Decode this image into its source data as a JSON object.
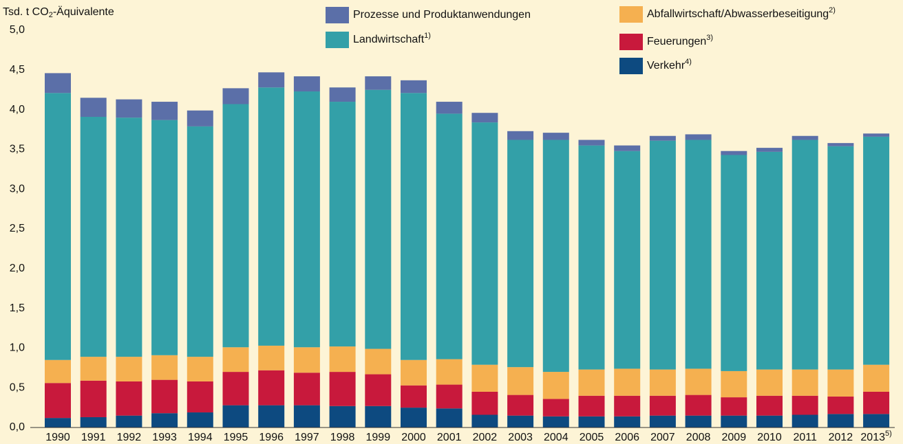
{
  "chart_data": {
    "type": "stacked_bar",
    "y_label": [
      "Tsd. t CO",
      "2",
      "-Äquivalente"
    ],
    "categories": [
      "1990",
      "1991",
      "1992",
      "1993",
      "1994",
      "1995",
      "1996",
      "1997",
      "1998",
      "1999",
      "2000",
      "2001",
      "2002",
      "2003",
      "2004",
      "2005",
      "2006",
      "2007",
      "2008",
      "2009",
      "2010",
      "2011",
      "2012",
      "2013"
    ],
    "category_footnotes": [
      null,
      null,
      null,
      null,
      null,
      null,
      null,
      null,
      null,
      null,
      null,
      null,
      null,
      null,
      null,
      null,
      null,
      null,
      null,
      null,
      null,
      null,
      null,
      "5)"
    ],
    "series": [
      {
        "name": "Verkehr",
        "footnote": "4)",
        "color": "#0d4a80",
        "values": [
          0.12,
          0.13,
          0.15,
          0.18,
          0.19,
          0.28,
          0.28,
          0.28,
          0.27,
          0.27,
          0.25,
          0.24,
          0.16,
          0.15,
          0.14,
          0.14,
          0.14,
          0.15,
          0.15,
          0.15,
          0.15,
          0.16,
          0.17,
          0.17
        ]
      },
      {
        "name": "Feuerungen",
        "footnote": "3)",
        "color": "#c8193c",
        "values": [
          0.44,
          0.46,
          0.43,
          0.42,
          0.39,
          0.42,
          0.44,
          0.41,
          0.43,
          0.4,
          0.28,
          0.3,
          0.29,
          0.26,
          0.22,
          0.26,
          0.26,
          0.25,
          0.26,
          0.23,
          0.25,
          0.24,
          0.22,
          0.28
        ]
      },
      {
        "name": "Abfallwirtschaft/Abwasserbeseitigung",
        "footnote": "2)",
        "color": "#f5b050",
        "values": [
          0.29,
          0.3,
          0.31,
          0.31,
          0.31,
          0.31,
          0.31,
          0.32,
          0.32,
          0.32,
          0.32,
          0.32,
          0.34,
          0.35,
          0.34,
          0.33,
          0.34,
          0.33,
          0.33,
          0.33,
          0.33,
          0.33,
          0.34,
          0.34
        ]
      },
      {
        "name": "Landwirtschaft",
        "footnote": "1)",
        "color": "#33a0a8",
        "values": [
          3.36,
          3.02,
          3.01,
          2.96,
          2.9,
          3.06,
          3.25,
          3.22,
          3.08,
          3.26,
          3.36,
          3.09,
          3.05,
          2.86,
          2.92,
          2.82,
          2.74,
          2.88,
          2.88,
          2.72,
          2.74,
          2.89,
          2.81,
          2.87
        ]
      },
      {
        "name": "Prozesse und Produktanwendungen",
        "footnote": null,
        "color": "#5b6fa8",
        "values": [
          0.25,
          0.24,
          0.23,
          0.23,
          0.2,
          0.2,
          0.19,
          0.19,
          0.18,
          0.17,
          0.16,
          0.15,
          0.12,
          0.11,
          0.09,
          0.07,
          0.07,
          0.06,
          0.07,
          0.05,
          0.05,
          0.05,
          0.04,
          0.04
        ]
      }
    ],
    "ylim": [
      0,
      5
    ],
    "yticks": [
      {
        "value": 0,
        "label": "0,0"
      },
      {
        "value": 0.5,
        "label": "0,5"
      },
      {
        "value": 1,
        "label": "1,0"
      },
      {
        "value": 1.5,
        "label": "1,5"
      },
      {
        "value": 2,
        "label": "2,0"
      },
      {
        "value": 2.5,
        "label": "2,5"
      },
      {
        "value": 3,
        "label": "3,0"
      },
      {
        "value": 3.5,
        "label": "3,5"
      },
      {
        "value": 4,
        "label": "4,0"
      },
      {
        "value": 4.5,
        "label": "4,5"
      },
      {
        "value": 5,
        "label": "5,0"
      }
    ],
    "grid": false
  }
}
